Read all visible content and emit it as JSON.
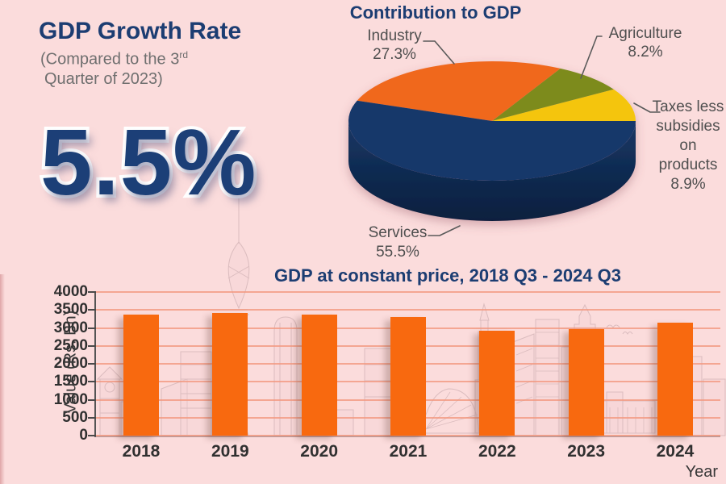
{
  "colors": {
    "background": "#fbdcdc",
    "navy_text": "#1c3d72",
    "pie_services": "#17396b",
    "pie_side": "#0d2345",
    "pie_industry": "#f0681f",
    "pie_agriculture": "#7d8b1d",
    "pie_taxes": "#f4c511",
    "bar_orange": "#f8690f",
    "gridline": "#f2997f",
    "label_gray": "#4f4f4f"
  },
  "growth_panel": {
    "title": "GDP Growth Rate",
    "subtitle_line1": "(Compared to the 3",
    "subtitle_sup": "rd",
    "subtitle_line2": "Quarter of 2023)",
    "value": "5.5%"
  },
  "chart_data": [
    {
      "type": "pie",
      "style": "3d-ellipse",
      "title": "Contribution to GDP",
      "unit": "%",
      "legend_position": "callout-labels",
      "slices": [
        {
          "label": "Services",
          "pct_text": "55.5%",
          "value": 55.5,
          "color": "#17396b"
        },
        {
          "label": "Industry",
          "pct_text": "27.3%",
          "value": 27.3,
          "color": "#f0681f"
        },
        {
          "label": "Agriculture",
          "pct_text": "8.2%",
          "value": 8.2,
          "color": "#7d8b1d"
        },
        {
          "label": "Taxes less subsidies on products",
          "pct_text": "8.9%",
          "value": 8.9,
          "color": "#f4c511",
          "label_lines": [
            "Taxes less",
            "subsidies",
            "on",
            "products"
          ]
        }
      ]
    },
    {
      "type": "bar",
      "title": "GDP at constant price, 2018 Q3 - 2024 Q3",
      "categories": [
        "2018",
        "2019",
        "2020",
        "2021",
        "2022",
        "2023",
        "2024"
      ],
      "values": [
        3370,
        3410,
        3370,
        3295,
        2915,
        2975,
        3140
      ],
      "xlabel": "Year",
      "ylabel": "Value (Rs. Bn)",
      "ylim": [
        0,
        4000
      ],
      "ytick_step": 500,
      "grid": true,
      "bar_color": "#f8690f"
    }
  ]
}
